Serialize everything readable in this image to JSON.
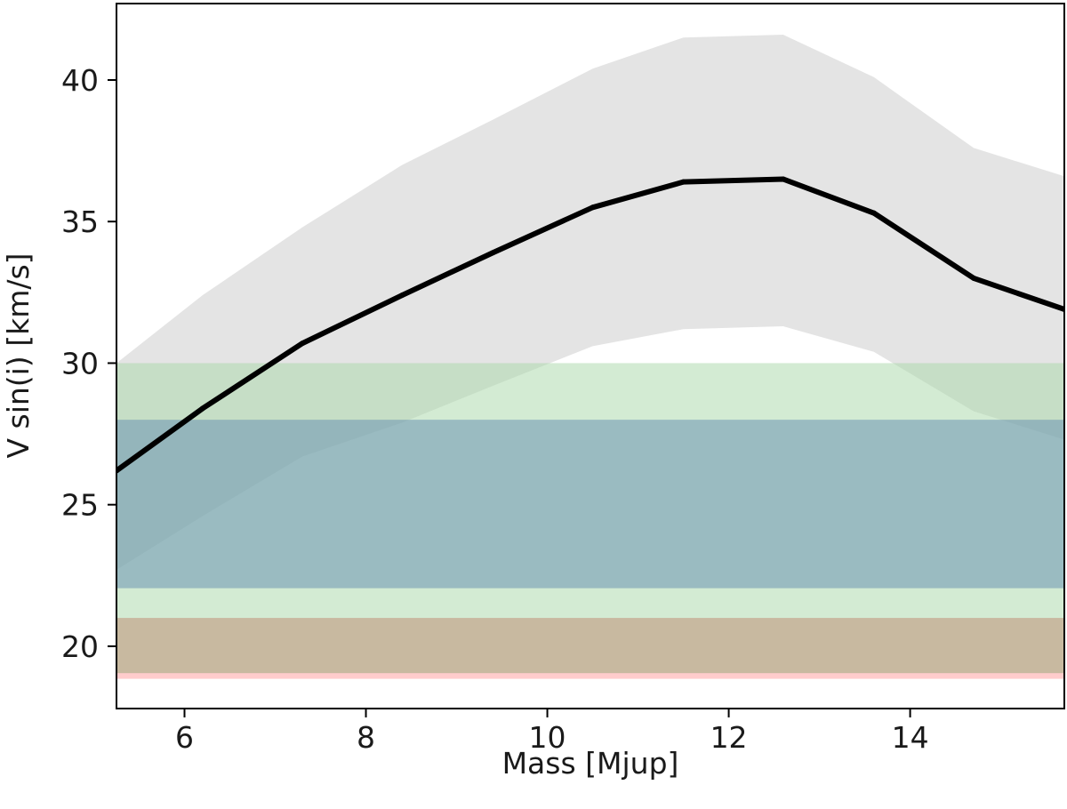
{
  "chart_data": {
    "type": "line",
    "xlabel": "Mass [Mjup]",
    "ylabel": "V sin(i) [km/s]",
    "xlim": [
      5.25,
      15.7
    ],
    "ylim": [
      17.8,
      42.7
    ],
    "xticks": [
      6,
      8,
      10,
      12,
      14
    ],
    "yticks": [
      20,
      25,
      30,
      35,
      40
    ],
    "grid": false,
    "legend": "none",
    "series": [
      {
        "x": [
          5.25,
          6.2,
          7.3,
          8.4,
          9.4,
          10.5,
          11.5,
          12.6,
          13.6,
          14.7,
          15.7
        ],
        "y": [
          26.2,
          28.4,
          30.7,
          32.4,
          33.9,
          35.5,
          36.4,
          36.5,
          35.3,
          33.0,
          31.9
        ],
        "color": "#000000"
      }
    ],
    "range_band": {
      "x": [
        5.25,
        6.2,
        7.3,
        8.4,
        9.4,
        10.5,
        11.5,
        12.6,
        13.6,
        14.7,
        15.7
      ],
      "lower": [
        22.7,
        24.6,
        26.7,
        27.9,
        29.2,
        30.6,
        31.2,
        31.3,
        30.4,
        28.3,
        27.3
      ],
      "upper": [
        30.0,
        32.4,
        34.8,
        37.0,
        38.6,
        40.4,
        41.5,
        41.6,
        40.1,
        37.6,
        36.6
      ],
      "color": "#e4e4e4"
    },
    "horizontal_bands": [
      {
        "y0": 18.85,
        "y1": 21.0,
        "color": "#ffb6b6",
        "opacity": 0.7
      },
      {
        "y0": 19.05,
        "y1": 21.0,
        "color": "#c8b9a0",
        "opacity": 1.0
      },
      {
        "y0": 21.0,
        "y1": 30.0,
        "color": "#a8d8a8",
        "opacity": 0.5
      },
      {
        "y0": 22.05,
        "y1": 28.0,
        "color": "#6c93b3",
        "opacity": 0.55
      }
    ]
  }
}
